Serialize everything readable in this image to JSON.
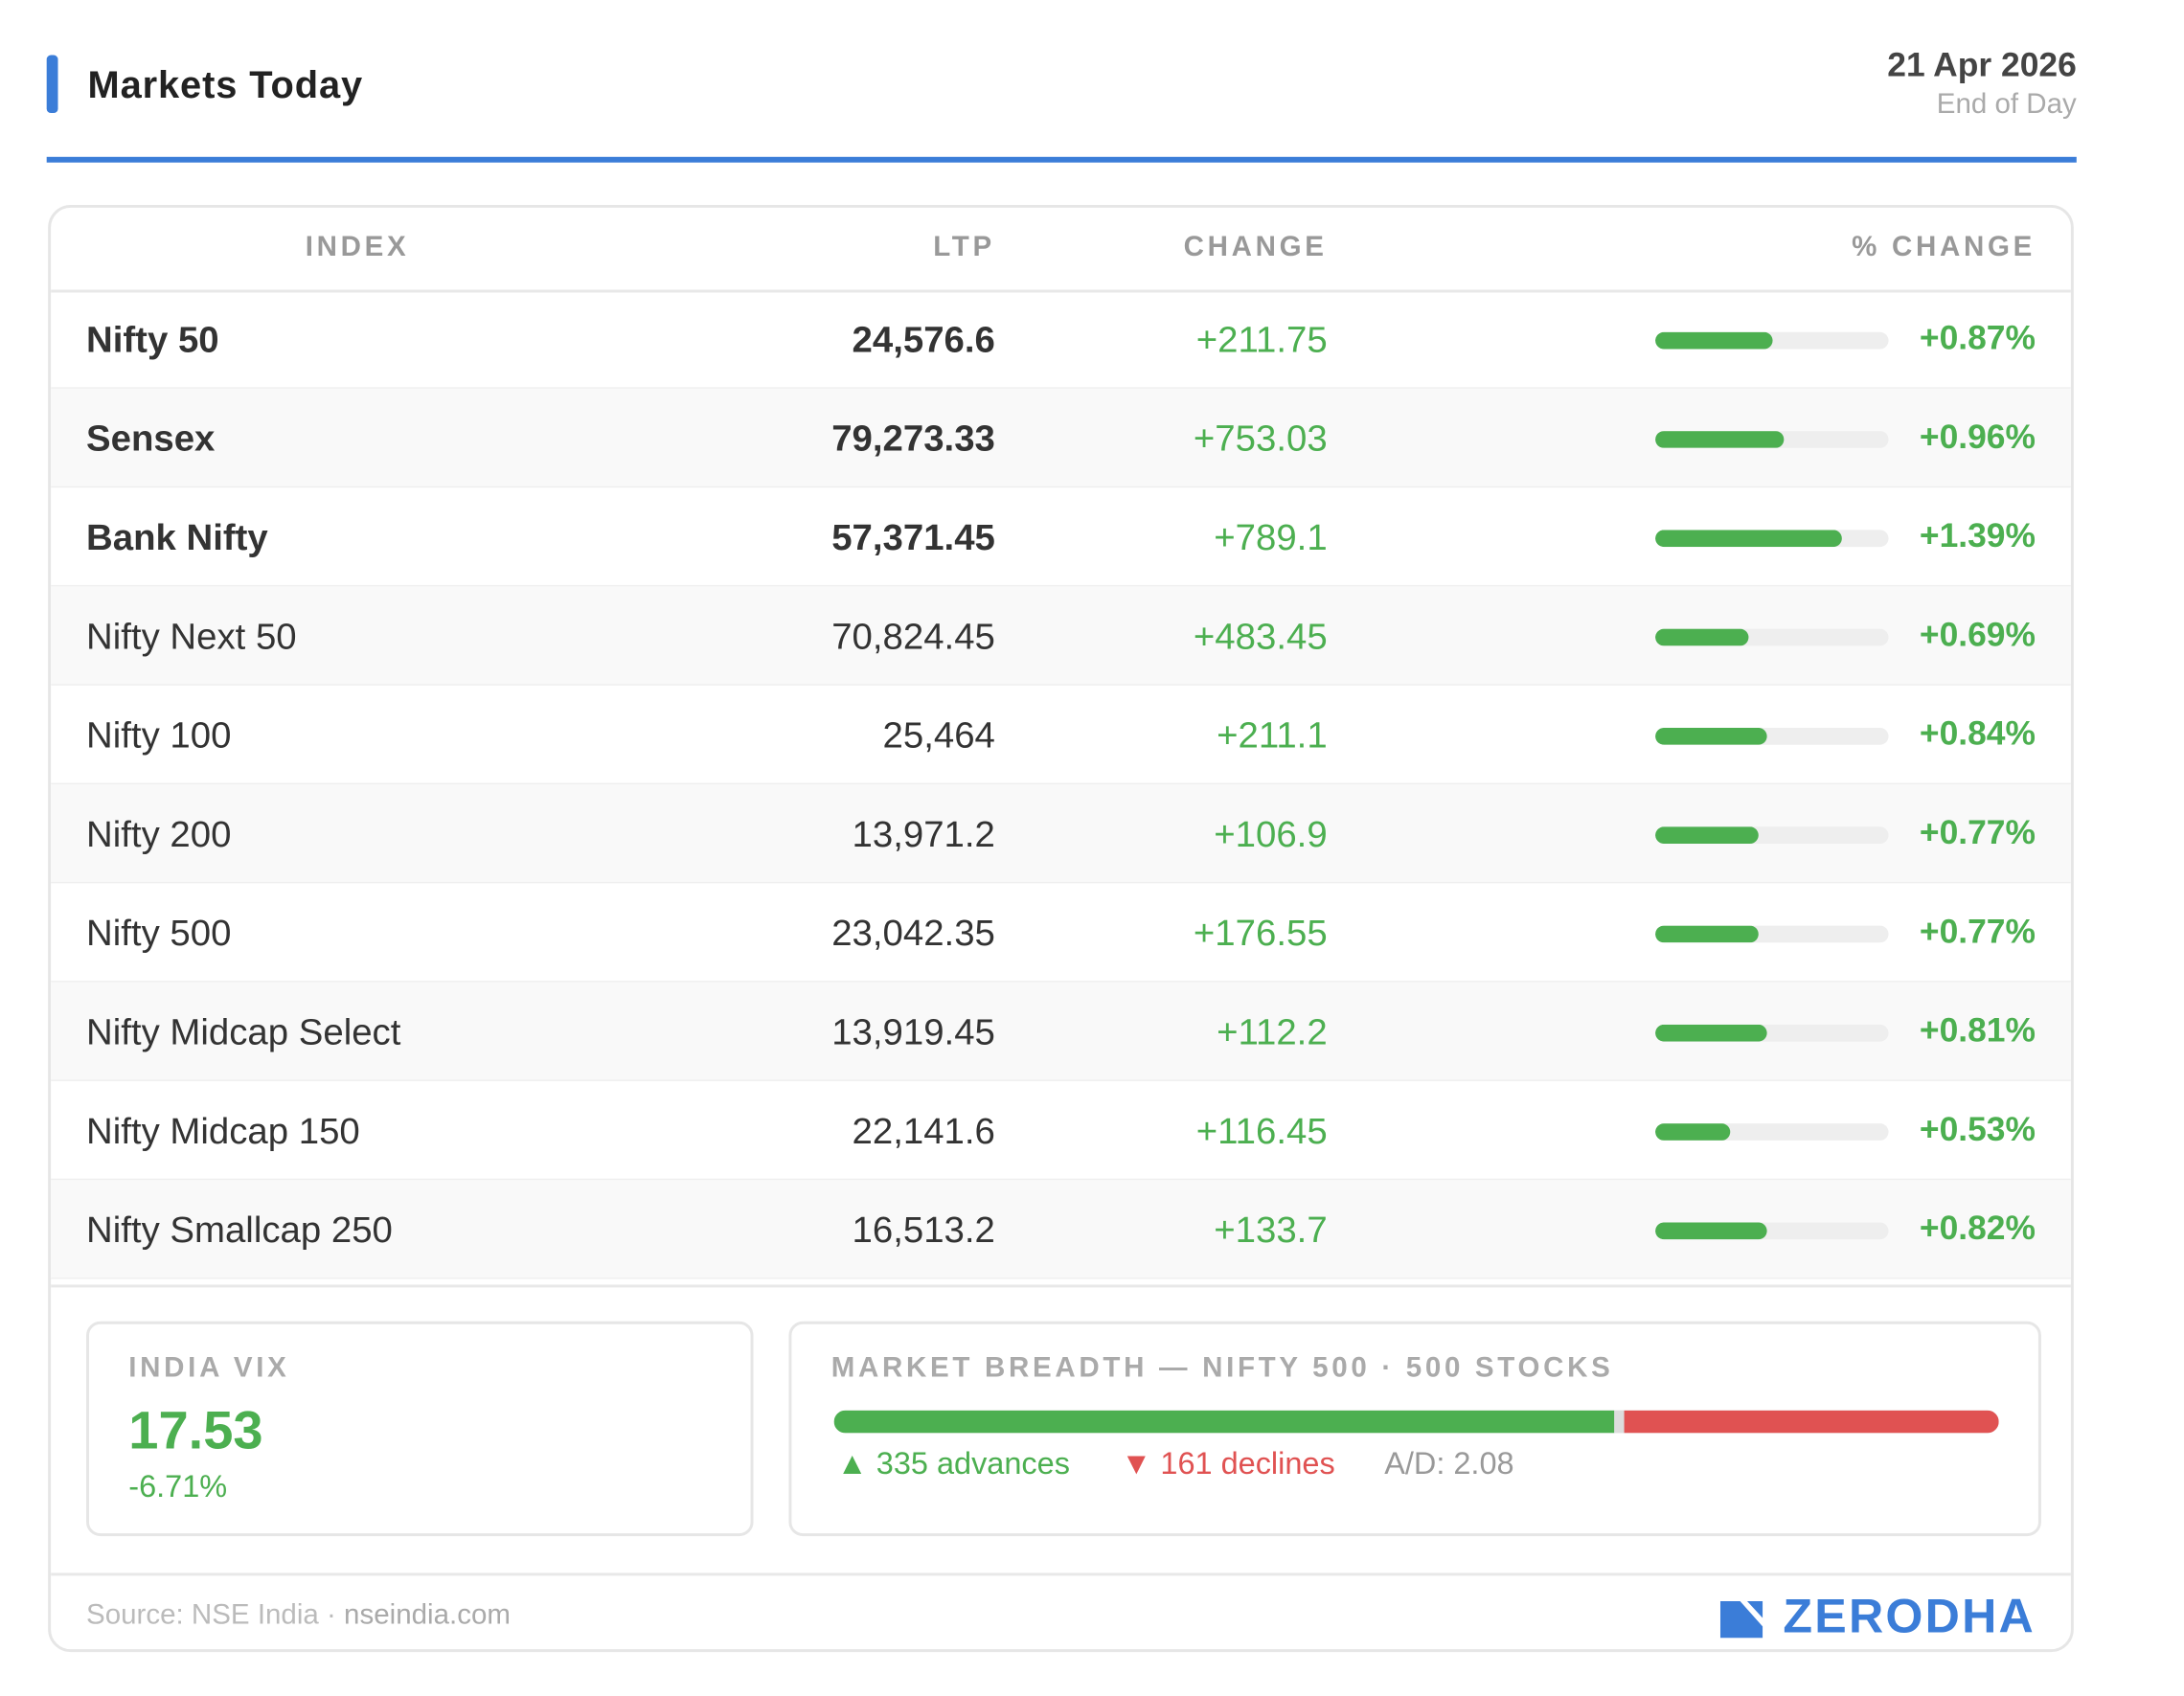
{
  "header": {
    "title": "Markets Today",
    "date": "21 Apr 2026",
    "subtitle": "End of Day"
  },
  "table": {
    "columns": {
      "index": "INDEX",
      "ltp": "LTP",
      "change": "CHANGE",
      "pct": "% CHANGE"
    },
    "rows": [
      {
        "name": "Nifty 50",
        "ltp": "24,576.6",
        "change": "+211.75",
        "pct": "+0.87%",
        "major": true,
        "bar_fraction": 0.5
      },
      {
        "name": "Sensex",
        "ltp": "79,273.33",
        "change": "+753.03",
        "pct": "+0.96%",
        "major": true,
        "bar_fraction": 0.55
      },
      {
        "name": "Bank Nifty",
        "ltp": "57,371.45",
        "change": "+789.1",
        "pct": "+1.39%",
        "major": true,
        "bar_fraction": 0.8
      },
      {
        "name": "Nifty Next 50",
        "ltp": "70,824.45",
        "change": "+483.45",
        "pct": "+0.69%",
        "major": false,
        "bar_fraction": 0.4
      },
      {
        "name": "Nifty 100",
        "ltp": "25,464",
        "change": "+211.1",
        "pct": "+0.84%",
        "major": false,
        "bar_fraction": 0.48
      },
      {
        "name": "Nifty 200",
        "ltp": "13,971.2",
        "change": "+106.9",
        "pct": "+0.77%",
        "major": false,
        "bar_fraction": 0.44
      },
      {
        "name": "Nifty 500",
        "ltp": "23,042.35",
        "change": "+176.55",
        "pct": "+0.77%",
        "major": false,
        "bar_fraction": 0.44
      },
      {
        "name": "Nifty Midcap Select",
        "ltp": "13,919.45",
        "change": "+112.2",
        "pct": "+0.81%",
        "major": false,
        "bar_fraction": 0.48
      },
      {
        "name": "Nifty Midcap 150",
        "ltp": "22,141.6",
        "change": "+116.45",
        "pct": "+0.53%",
        "major": false,
        "bar_fraction": 0.32
      },
      {
        "name": "Nifty Smallcap 250",
        "ltp": "16,513.2",
        "change": "+133.7",
        "pct": "+0.82%",
        "major": false,
        "bar_fraction": 0.48
      }
    ]
  },
  "vix": {
    "label": "INDIA VIX",
    "value": "17.53",
    "change": "-6.71%"
  },
  "breadth": {
    "label": "MARKET BREADTH — NIFTY 500 · 500 STOCKS",
    "advances_text": "▲ 335 advances",
    "declines_text": "▼ 161 declines",
    "ad_text": "A/D: 2.08",
    "advances": 335,
    "declines": 161,
    "total": 500
  },
  "footer": {
    "source_prefix": "Source: NSE India ·",
    "source_site": "nseindia.com",
    "brand": "ZERODHA"
  },
  "colors": {
    "accent": "#3b7dd8",
    "positive": "#4caf50",
    "negative": "#e05252"
  },
  "icons": {
    "brand_logo": "zerodha-logo-icon"
  }
}
